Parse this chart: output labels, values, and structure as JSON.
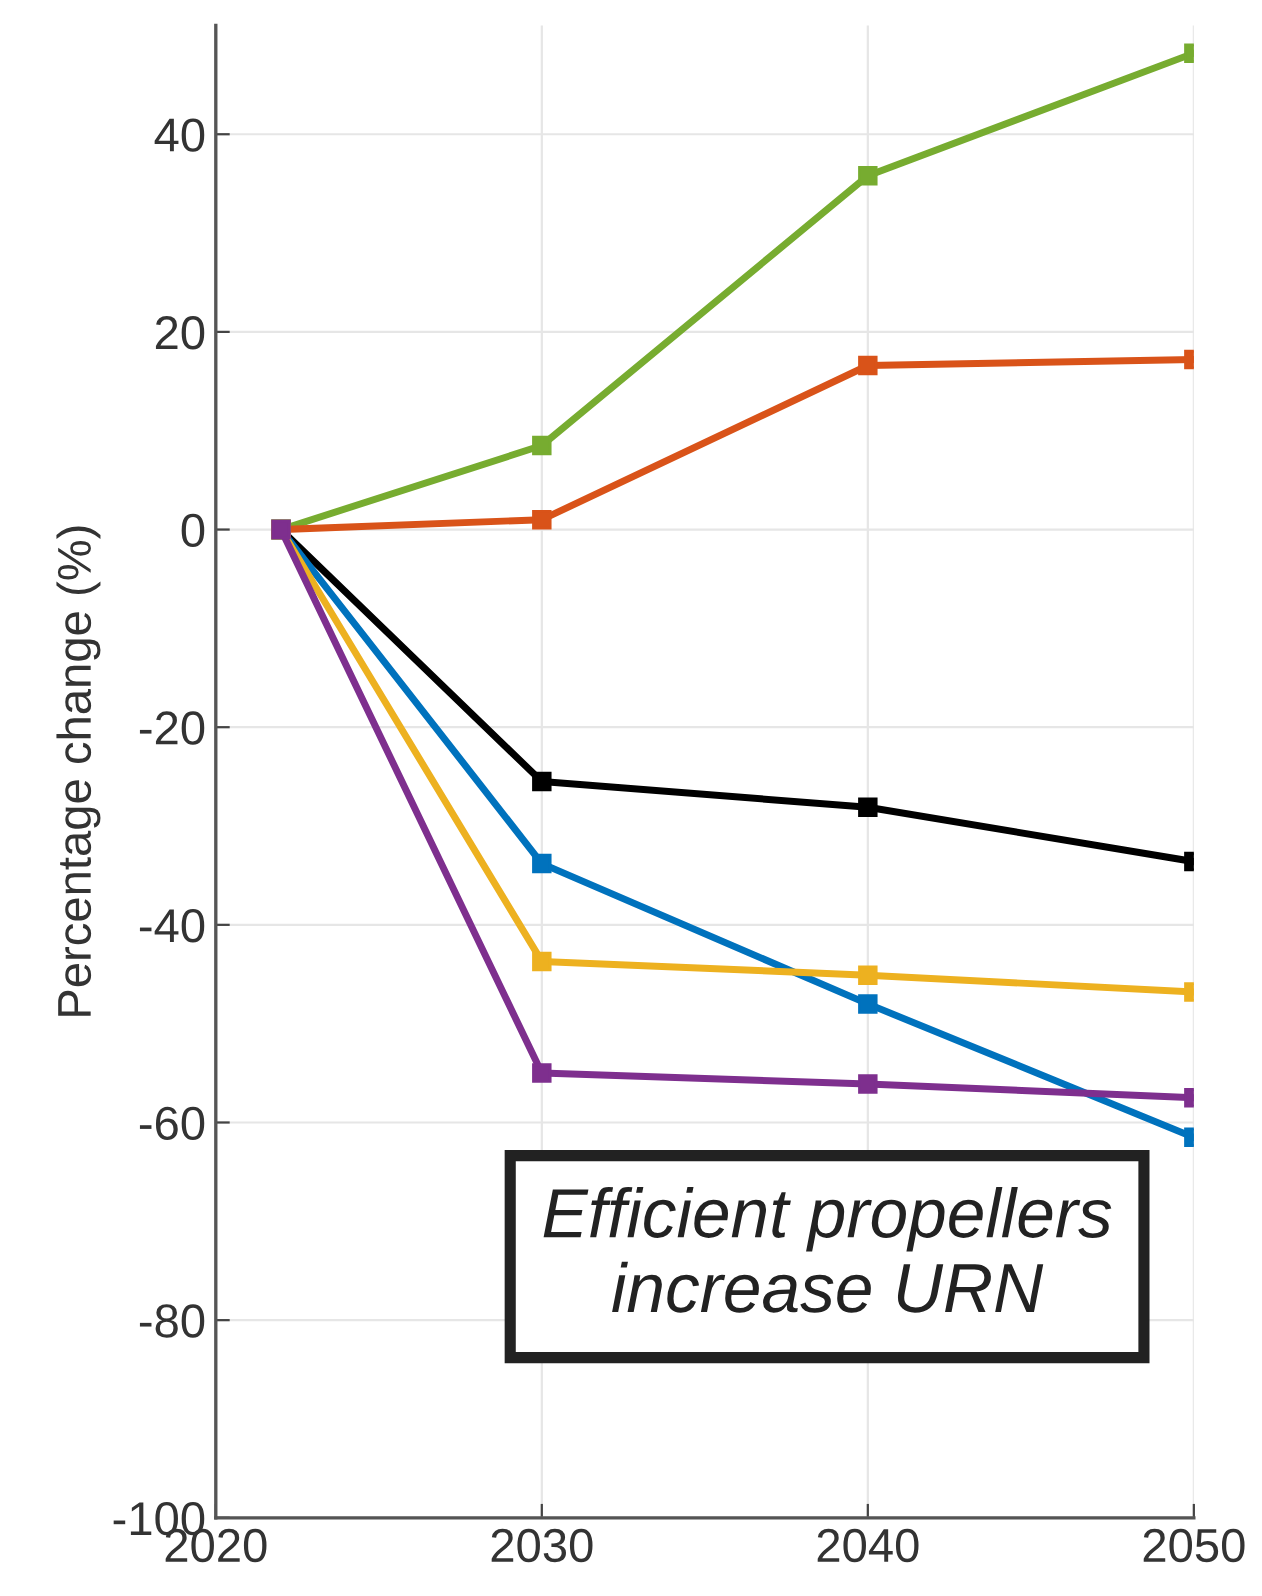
{
  "chart_data": {
    "type": "line",
    "ylabel": "Percentage change (%)",
    "x": [
      2022,
      2030,
      2040,
      2050
    ],
    "series": [
      {
        "color": "#77ac30",
        "values": [
          0,
          8.5,
          35.8,
          48.2
        ]
      },
      {
        "color": "#d95319",
        "values": [
          0,
          1,
          16.6,
          17.2
        ]
      },
      {
        "color": "#000000",
        "values": [
          0,
          -25.5,
          -28.1,
          -33.6
        ]
      },
      {
        "color": "#0072bd",
        "values": [
          0,
          -33.8,
          -48,
          -61.5
        ]
      },
      {
        "color": "#edb120",
        "values": [
          0,
          -43.7,
          -45.1,
          -46.8
        ]
      },
      {
        "color": "#7e2f8e",
        "values": [
          0,
          -55,
          -56.1,
          -57.5
        ]
      }
    ],
    "xlim": [
      2020,
      2050
    ],
    "xticks": [
      2020,
      2030,
      2040,
      2050
    ],
    "ylim": [
      -100,
      51
    ],
    "yticks": [
      -100,
      -80,
      -60,
      -40,
      -20,
      0,
      20,
      40
    ],
    "grid": true,
    "marker": "square",
    "line_style": "solid",
    "annotations": [
      "Efficient propellers\nincrease URN"
    ]
  }
}
